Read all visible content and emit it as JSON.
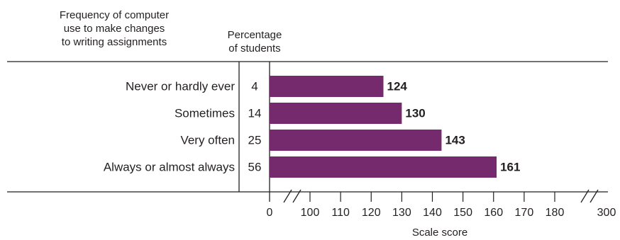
{
  "header": {
    "category_title_lines": [
      "Frequency of computer",
      "use to make changes",
      "to writing assignments"
    ],
    "percent_title_lines": [
      "Percentage",
      "of students"
    ]
  },
  "chart_data": {
    "type": "bar",
    "orientation": "horizontal",
    "categories": [
      "Never or hardly ever",
      "Sometimes",
      "Very often",
      "Always or almost always"
    ],
    "percentages": [
      "4",
      "14",
      "25",
      "56"
    ],
    "values": [
      124,
      130,
      143,
      161
    ],
    "xlabel": "Scale score",
    "ylabel": "",
    "x_ticks": [
      0,
      100,
      110,
      120,
      130,
      140,
      150,
      160,
      170,
      180,
      300
    ],
    "axis_breaks": [
      "between 0 and 100",
      "between 180 and 300"
    ],
    "xlim": [
      0,
      300
    ],
    "bar_color": "#762a6e",
    "grid": false,
    "legend": "none"
  }
}
